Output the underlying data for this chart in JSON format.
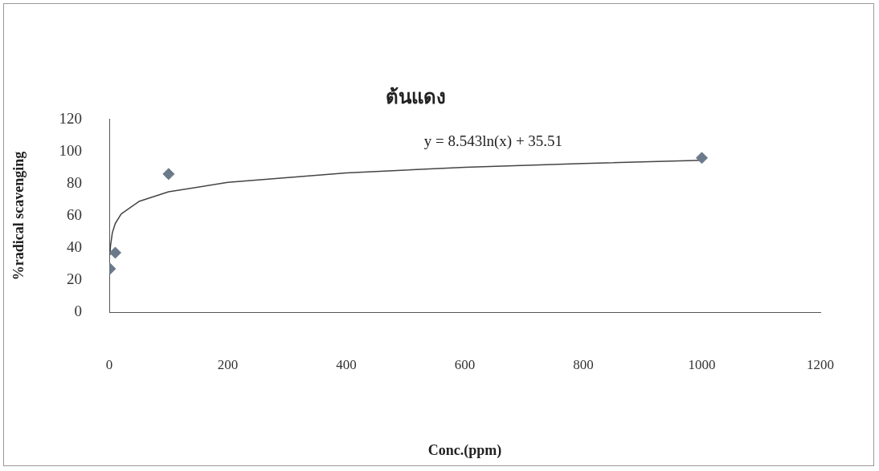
{
  "chart_data": {
    "type": "scatter",
    "title": "ต้นแดง",
    "xlabel": "Conc.(ppm)",
    "ylabel": "%radical scavenging",
    "xlim": [
      0,
      1200
    ],
    "xticks": [
      0,
      200,
      400,
      600,
      800,
      1000,
      1200
    ],
    "ylim": [
      0,
      120
    ],
    "yticks": [
      0,
      20,
      40,
      60,
      80,
      100,
      120
    ],
    "grid": false,
    "legend": false,
    "annotations": [
      "y = 8.543ln(x) + 35.51"
    ],
    "series": [
      {
        "type": "scatter",
        "color": "#6b7a8a",
        "marker": "diamond",
        "x": [
          1,
          10,
          100,
          1000
        ],
        "values": [
          27,
          37,
          86,
          96
        ]
      },
      {
        "type": "line",
        "color": "#444444",
        "marker": "none",
        "line_style": "solid",
        "x": [
          1,
          2,
          5,
          10,
          20,
          50,
          100,
          200,
          400,
          600,
          800,
          1000
        ],
        "values": [
          35.5,
          41.4,
          49.3,
          55.2,
          61.1,
          68.9,
          74.9,
          80.8,
          86.7,
          90.2,
          92.6,
          94.5
        ]
      }
    ]
  }
}
